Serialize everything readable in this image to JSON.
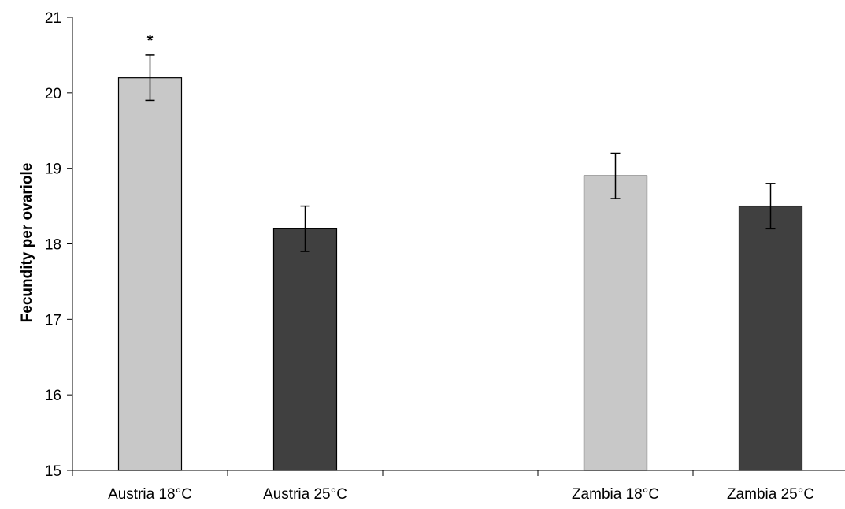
{
  "chart_data": {
    "type": "bar",
    "title": "",
    "xlabel": "",
    "ylabel": "Fecundity per ovariole",
    "ylim": [
      15,
      21
    ],
    "yticks": [
      15,
      16,
      17,
      18,
      19,
      20,
      21
    ],
    "grid": false,
    "legend": "none",
    "slots": 5,
    "categories": [
      "Austria 18°C",
      "Austria 25°C",
      "",
      "Zambia 18°C",
      "Zambia 25°C"
    ],
    "values": [
      20.2,
      18.2,
      null,
      18.9,
      18.5
    ],
    "errors": [
      0.3,
      0.3,
      null,
      0.3,
      0.3
    ],
    "colors": [
      "#c8c8c8",
      "#404040",
      null,
      "#c8c8c8",
      "#404040"
    ],
    "annotations": [
      {
        "category": "Austria 18°C",
        "text": "*"
      }
    ]
  }
}
